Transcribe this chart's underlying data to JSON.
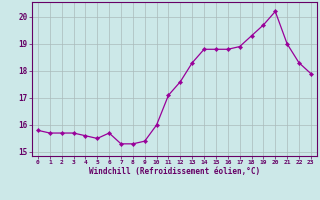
{
  "x": [
    0,
    1,
    2,
    3,
    4,
    5,
    6,
    7,
    8,
    9,
    10,
    11,
    12,
    13,
    14,
    15,
    16,
    17,
    18,
    19,
    20,
    21,
    22,
    23
  ],
  "y": [
    15.8,
    15.7,
    15.7,
    15.7,
    15.6,
    15.5,
    15.7,
    15.3,
    15.3,
    15.4,
    16.0,
    17.1,
    17.6,
    18.3,
    18.8,
    18.8,
    18.8,
    18.9,
    19.3,
    19.7,
    20.2,
    19.0,
    18.3,
    17.9
  ],
  "line_color": "#990099",
  "marker": "D",
  "marker_size": 2.2,
  "bg_color": "#cce8e8",
  "xlabel": "Windchill (Refroidissement éolien,°C)",
  "ylim": [
    14.85,
    20.55
  ],
  "yticks": [
    15,
    16,
    17,
    18,
    19,
    20
  ],
  "xlim": [
    -0.5,
    23.5
  ],
  "xticks": [
    0,
    1,
    2,
    3,
    4,
    5,
    6,
    7,
    8,
    9,
    10,
    11,
    12,
    13,
    14,
    15,
    16,
    17,
    18,
    19,
    20,
    21,
    22,
    23
  ],
  "axis_color": "#660066",
  "tick_color": "#660066",
  "label_color": "#660066",
  "grid_color": "#aabbbb",
  "line_width": 0.9
}
